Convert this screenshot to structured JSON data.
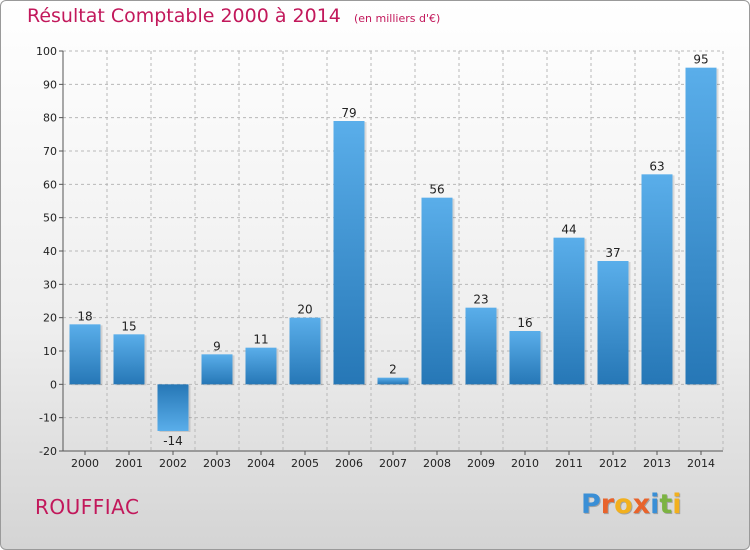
{
  "header": {
    "title": "Résultat Comptable 2000 à 2014",
    "subtitle": "(en milliers d'€)"
  },
  "footer": {
    "commune": "ROUFFIAC",
    "logo_letters": [
      "P",
      "r",
      "o",
      "x",
      "i",
      "t",
      "i"
    ],
    "logo_colors": [
      "#3a8fd6",
      "#e8632b",
      "#f2b01e",
      "#e8632b",
      "#3a8fd6",
      "#7cb342",
      "#f2b01e"
    ]
  },
  "colors": {
    "title": "#c2185b",
    "bar_light": "#5aaeea",
    "bar_dark": "#2677b6",
    "axis_text": "#222222",
    "grid": "#b8b8b8"
  },
  "chart_data": {
    "type": "bar",
    "title": "Résultat Comptable 2000 à 2014",
    "xlabel": "",
    "ylabel": "",
    "categories": [
      "2000",
      "2001",
      "2002",
      "2003",
      "2004",
      "2005",
      "2006",
      "2007",
      "2008",
      "2009",
      "2010",
      "2011",
      "2012",
      "2013",
      "2014"
    ],
    "values": [
      18,
      15,
      -14,
      9,
      11,
      20,
      79,
      2,
      56,
      23,
      16,
      44,
      37,
      63,
      95
    ],
    "ylim": [
      -20,
      100
    ],
    "yticks": [
      -20,
      -10,
      0,
      10,
      20,
      30,
      40,
      50,
      60,
      70,
      80,
      90,
      100
    ],
    "grid": true
  }
}
